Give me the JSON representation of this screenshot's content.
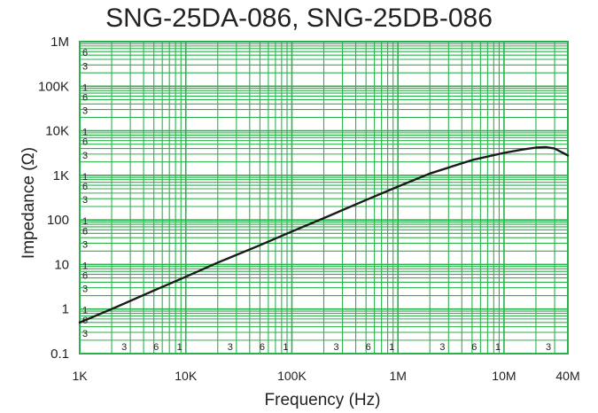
{
  "chart_data": {
    "type": "line",
    "title": "SNG-25DA-086, SNG-25DB-086",
    "xlabel": "Frequency (Hz)",
    "ylabel": "Impedance (Ω)",
    "x_scale": "log",
    "y_scale": "log",
    "xlim": [
      1000,
      40000000
    ],
    "ylim": [
      0.1,
      1000000
    ],
    "grid": true,
    "colors": {
      "grid": "#2bb24c",
      "line": "#1a1a1a"
    },
    "x_ticks": [
      {
        "value": 1000,
        "label": "1K"
      },
      {
        "value": 10000,
        "label": "10K"
      },
      {
        "value": 100000,
        "label": "100K"
      },
      {
        "value": 1000000,
        "label": "1M"
      },
      {
        "value": 10000000,
        "label": "10M"
      },
      {
        "value": 40000000,
        "label": "40M"
      }
    ],
    "x_minor_labels": [
      {
        "value": 3000,
        "label": "3"
      },
      {
        "value": 6000,
        "label": "6"
      },
      {
        "value": 10000,
        "label": "1"
      },
      {
        "value": 30000,
        "label": "3"
      },
      {
        "value": 60000,
        "label": "6"
      },
      {
        "value": 100000,
        "label": "1"
      },
      {
        "value": 300000,
        "label": "3"
      },
      {
        "value": 600000,
        "label": "6"
      },
      {
        "value": 1000000,
        "label": "1"
      },
      {
        "value": 3000000,
        "label": "3"
      },
      {
        "value": 6000000,
        "label": "6"
      },
      {
        "value": 10000000,
        "label": "1"
      },
      {
        "value": 30000000,
        "label": "3"
      }
    ],
    "y_ticks": [
      {
        "value": 0.1,
        "label": "0.1"
      },
      {
        "value": 1,
        "label": "1"
      },
      {
        "value": 10,
        "label": "10"
      },
      {
        "value": 100,
        "label": "100"
      },
      {
        "value": 1000,
        "label": "1K"
      },
      {
        "value": 10000,
        "label": "10K"
      },
      {
        "value": 100000,
        "label": "100K"
      },
      {
        "value": 1000000,
        "label": "1M"
      }
    ],
    "y_minor_labels": [
      {
        "value": 0.3,
        "label": "3"
      },
      {
        "value": 0.6,
        "label": "6"
      },
      {
        "value": 1,
        "label": "1"
      },
      {
        "value": 3,
        "label": "3"
      },
      {
        "value": 6,
        "label": "6"
      },
      {
        "value": 10,
        "label": "1"
      },
      {
        "value": 30,
        "label": "3"
      },
      {
        "value": 60,
        "label": "6"
      },
      {
        "value": 100,
        "label": "1"
      },
      {
        "value": 300,
        "label": "3"
      },
      {
        "value": 600,
        "label": "6"
      },
      {
        "value": 1000,
        "label": "1"
      },
      {
        "value": 3000,
        "label": "3"
      },
      {
        "value": 6000,
        "label": "6"
      },
      {
        "value": 10000,
        "label": "1"
      },
      {
        "value": 30000,
        "label": "3"
      },
      {
        "value": 60000,
        "label": "6"
      },
      {
        "value": 100000,
        "label": "1"
      },
      {
        "value": 300000,
        "label": "3"
      },
      {
        "value": 600000,
        "label": "6"
      }
    ],
    "series": [
      {
        "x": [
          1000,
          2000,
          5000,
          10000,
          20000,
          50000,
          100000,
          200000,
          500000,
          1000000,
          2000000,
          5000000,
          10000000,
          15000000,
          20000000,
          25000000,
          30000000,
          40000000
        ],
        "y": [
          0.5,
          1.0,
          2.6,
          5.3,
          11,
          27,
          55,
          110,
          280,
          560,
          1100,
          2200,
          3200,
          3800,
          4200,
          4300,
          4000,
          2800
        ]
      }
    ]
  }
}
